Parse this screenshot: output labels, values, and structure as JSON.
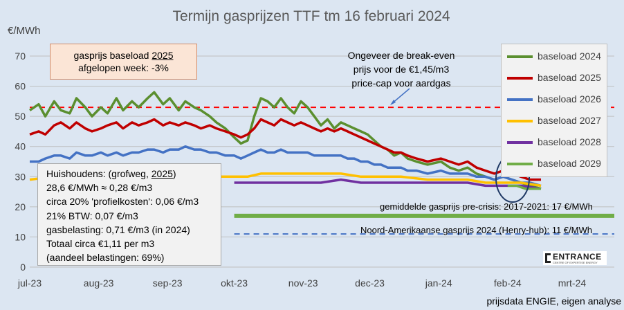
{
  "chart_data": {
    "type": "line",
    "title": "Termijn gasprijzen TTF tm 16 februari 2024",
    "ylabel": "€/MWh",
    "ylim": [
      0,
      70
    ],
    "yticks": [
      "0",
      "10",
      "20",
      "30",
      "40",
      "50",
      "60",
      "70"
    ],
    "xlim": [
      "2023-07-01",
      "2024-03-20"
    ],
    "xticks": [
      {
        "label": "jul-23",
        "date": "2023-07-01"
      },
      {
        "label": "aug-23",
        "date": "2023-08-01"
      },
      {
        "label": "sep-23",
        "date": "2023-09-01"
      },
      {
        "label": "okt-23",
        "date": "2023-10-01"
      },
      {
        "label": "nov-23",
        "date": "2023-11-01"
      },
      {
        "label": "dec-23",
        "date": "2023-12-01"
      },
      {
        "label": "jan-24",
        "date": "2024-01-01"
      },
      {
        "label": "feb-24",
        "date": "2024-02-01"
      },
      {
        "label": "mrt-24",
        "date": "2024-03-01"
      }
    ],
    "grid": "horizontal",
    "legend_position": "top-right",
    "series": [
      {
        "name": "baseload 2024",
        "color": "#5b8f2f",
        "points": [
          [
            "2023-07-01",
            52
          ],
          [
            "2023-07-05",
            54
          ],
          [
            "2023-07-08",
            50
          ],
          [
            "2023-07-12",
            55
          ],
          [
            "2023-07-15",
            52
          ],
          [
            "2023-07-19",
            51
          ],
          [
            "2023-07-22",
            56
          ],
          [
            "2023-07-26",
            53
          ],
          [
            "2023-07-29",
            50
          ],
          [
            "2023-08-02",
            53
          ],
          [
            "2023-08-05",
            51
          ],
          [
            "2023-08-09",
            56
          ],
          [
            "2023-08-12",
            52
          ],
          [
            "2023-08-16",
            55
          ],
          [
            "2023-08-19",
            53
          ],
          [
            "2023-08-23",
            56
          ],
          [
            "2023-08-26",
            58
          ],
          [
            "2023-08-30",
            54
          ],
          [
            "2023-09-02",
            56
          ],
          [
            "2023-09-06",
            52
          ],
          [
            "2023-09-09",
            55
          ],
          [
            "2023-09-13",
            53
          ],
          [
            "2023-09-16",
            52
          ],
          [
            "2023-09-20",
            50
          ],
          [
            "2023-09-23",
            48
          ],
          [
            "2023-09-27",
            46
          ],
          [
            "2023-10-01",
            43
          ],
          [
            "2023-10-04",
            41
          ],
          [
            "2023-10-07",
            42
          ],
          [
            "2023-10-10",
            50
          ],
          [
            "2023-10-13",
            56
          ],
          [
            "2023-10-16",
            55
          ],
          [
            "2023-10-19",
            53
          ],
          [
            "2023-10-22",
            56
          ],
          [
            "2023-10-25",
            53
          ],
          [
            "2023-10-28",
            51
          ],
          [
            "2023-10-31",
            55
          ],
          [
            "2023-11-03",
            53
          ],
          [
            "2023-11-06",
            50
          ],
          [
            "2023-11-09",
            47
          ],
          [
            "2023-11-12",
            49
          ],
          [
            "2023-11-15",
            46
          ],
          [
            "2023-11-18",
            48
          ],
          [
            "2023-11-21",
            47
          ],
          [
            "2023-11-24",
            46
          ],
          [
            "2023-11-27",
            45
          ],
          [
            "2023-11-30",
            44
          ],
          [
            "2023-12-03",
            42
          ],
          [
            "2023-12-06",
            40
          ],
          [
            "2023-12-09",
            39
          ],
          [
            "2023-12-12",
            37
          ],
          [
            "2023-12-15",
            38
          ],
          [
            "2023-12-18",
            36
          ],
          [
            "2023-12-22",
            35
          ],
          [
            "2023-12-27",
            34
          ],
          [
            "2024-01-02",
            35
          ],
          [
            "2024-01-06",
            33
          ],
          [
            "2024-01-10",
            32
          ],
          [
            "2024-01-14",
            33
          ],
          [
            "2024-01-18",
            31
          ],
          [
            "2024-01-22",
            30
          ],
          [
            "2024-01-26",
            29
          ],
          [
            "2024-01-30",
            30
          ],
          [
            "2024-02-03",
            29
          ],
          [
            "2024-02-07",
            28
          ],
          [
            "2024-02-11",
            27
          ],
          [
            "2024-02-16",
            26
          ]
        ]
      },
      {
        "name": "baseload 2025",
        "color": "#c00000",
        "points": [
          [
            "2023-07-01",
            44
          ],
          [
            "2023-07-05",
            45
          ],
          [
            "2023-07-08",
            44
          ],
          [
            "2023-07-12",
            47
          ],
          [
            "2023-07-15",
            48
          ],
          [
            "2023-07-19",
            46
          ],
          [
            "2023-07-22",
            48
          ],
          [
            "2023-07-26",
            46
          ],
          [
            "2023-07-29",
            45
          ],
          [
            "2023-08-02",
            46
          ],
          [
            "2023-08-05",
            47
          ],
          [
            "2023-08-09",
            48
          ],
          [
            "2023-08-12",
            46
          ],
          [
            "2023-08-16",
            48
          ],
          [
            "2023-08-19",
            47
          ],
          [
            "2023-08-23",
            48
          ],
          [
            "2023-08-26",
            49
          ],
          [
            "2023-08-30",
            47
          ],
          [
            "2023-09-02",
            48
          ],
          [
            "2023-09-06",
            47
          ],
          [
            "2023-09-09",
            48
          ],
          [
            "2023-09-13",
            47
          ],
          [
            "2023-09-16",
            46
          ],
          [
            "2023-09-20",
            47
          ],
          [
            "2023-09-23",
            46
          ],
          [
            "2023-09-27",
            45
          ],
          [
            "2023-10-01",
            44
          ],
          [
            "2023-10-04",
            43
          ],
          [
            "2023-10-07",
            44
          ],
          [
            "2023-10-10",
            46
          ],
          [
            "2023-10-13",
            49
          ],
          [
            "2023-10-16",
            48
          ],
          [
            "2023-10-19",
            47
          ],
          [
            "2023-10-22",
            49
          ],
          [
            "2023-10-25",
            48
          ],
          [
            "2023-10-28",
            47
          ],
          [
            "2023-10-31",
            48
          ],
          [
            "2023-11-03",
            47
          ],
          [
            "2023-11-06",
            46
          ],
          [
            "2023-11-09",
            45
          ],
          [
            "2023-11-12",
            46
          ],
          [
            "2023-11-15",
            45
          ],
          [
            "2023-11-18",
            46
          ],
          [
            "2023-11-21",
            45
          ],
          [
            "2023-11-24",
            44
          ],
          [
            "2023-11-27",
            43
          ],
          [
            "2023-11-30",
            42
          ],
          [
            "2023-12-03",
            41
          ],
          [
            "2023-12-06",
            40
          ],
          [
            "2023-12-09",
            39
          ],
          [
            "2023-12-12",
            38
          ],
          [
            "2023-12-15",
            38
          ],
          [
            "2023-12-18",
            37
          ],
          [
            "2023-12-22",
            36
          ],
          [
            "2023-12-27",
            35
          ],
          [
            "2024-01-02",
            36
          ],
          [
            "2024-01-06",
            35
          ],
          [
            "2024-01-10",
            34
          ],
          [
            "2024-01-14",
            35
          ],
          [
            "2024-01-18",
            33
          ],
          [
            "2024-01-22",
            32
          ],
          [
            "2024-01-26",
            31
          ],
          [
            "2024-01-30",
            32
          ],
          [
            "2024-02-03",
            31
          ],
          [
            "2024-02-07",
            30
          ],
          [
            "2024-02-11",
            29
          ],
          [
            "2024-02-16",
            29
          ]
        ]
      },
      {
        "name": "baseload 2026",
        "color": "#4472c4",
        "points": [
          [
            "2023-07-01",
            35
          ],
          [
            "2023-07-05",
            35
          ],
          [
            "2023-07-08",
            36
          ],
          [
            "2023-07-12",
            37
          ],
          [
            "2023-07-15",
            37
          ],
          [
            "2023-07-19",
            36
          ],
          [
            "2023-07-22",
            38
          ],
          [
            "2023-07-26",
            37
          ],
          [
            "2023-07-29",
            37
          ],
          [
            "2023-08-02",
            38
          ],
          [
            "2023-08-05",
            37
          ],
          [
            "2023-08-09",
            38
          ],
          [
            "2023-08-12",
            37
          ],
          [
            "2023-08-16",
            38
          ],
          [
            "2023-08-19",
            38
          ],
          [
            "2023-08-23",
            39
          ],
          [
            "2023-08-26",
            39
          ],
          [
            "2023-08-30",
            38
          ],
          [
            "2023-09-02",
            39
          ],
          [
            "2023-09-06",
            39
          ],
          [
            "2023-09-09",
            40
          ],
          [
            "2023-09-13",
            39
          ],
          [
            "2023-09-16",
            39
          ],
          [
            "2023-09-20",
            38
          ],
          [
            "2023-09-23",
            38
          ],
          [
            "2023-09-27",
            37
          ],
          [
            "2023-10-01",
            37
          ],
          [
            "2023-10-04",
            36
          ],
          [
            "2023-10-07",
            37
          ],
          [
            "2023-10-10",
            38
          ],
          [
            "2023-10-13",
            39
          ],
          [
            "2023-10-16",
            38
          ],
          [
            "2023-10-19",
            38
          ],
          [
            "2023-10-22",
            39
          ],
          [
            "2023-10-25",
            38
          ],
          [
            "2023-10-28",
            38
          ],
          [
            "2023-10-31",
            38
          ],
          [
            "2023-11-03",
            38
          ],
          [
            "2023-11-06",
            37
          ],
          [
            "2023-11-09",
            37
          ],
          [
            "2023-11-12",
            37
          ],
          [
            "2023-11-15",
            37
          ],
          [
            "2023-11-18",
            37
          ],
          [
            "2023-11-21",
            36
          ],
          [
            "2023-11-24",
            36
          ],
          [
            "2023-11-27",
            35
          ],
          [
            "2023-11-30",
            35
          ],
          [
            "2023-12-03",
            34
          ],
          [
            "2023-12-06",
            34
          ],
          [
            "2023-12-09",
            33
          ],
          [
            "2023-12-12",
            33
          ],
          [
            "2023-12-15",
            33
          ],
          [
            "2023-12-18",
            32
          ],
          [
            "2023-12-22",
            32
          ],
          [
            "2023-12-27",
            31
          ],
          [
            "2024-01-02",
            32
          ],
          [
            "2024-01-06",
            31
          ],
          [
            "2024-01-10",
            31
          ],
          [
            "2024-01-14",
            31
          ],
          [
            "2024-01-18",
            30
          ],
          [
            "2024-01-22",
            30
          ],
          [
            "2024-01-26",
            29
          ],
          [
            "2024-01-30",
            30
          ],
          [
            "2024-02-03",
            29
          ],
          [
            "2024-02-07",
            28
          ],
          [
            "2024-02-11",
            28
          ],
          [
            "2024-02-16",
            27
          ]
        ]
      },
      {
        "name": "baseload 2027",
        "color": "#ffc000",
        "points": [
          [
            "2023-07-01",
            29
          ],
          [
            "2023-07-12",
            30
          ],
          [
            "2023-07-22",
            30
          ],
          [
            "2023-08-02",
            30
          ],
          [
            "2023-08-12",
            30
          ],
          [
            "2023-08-23",
            31
          ],
          [
            "2023-09-02",
            31
          ],
          [
            "2023-09-13",
            31
          ],
          [
            "2023-09-23",
            30
          ],
          [
            "2023-10-01",
            30
          ],
          [
            "2023-10-07",
            30
          ],
          [
            "2023-10-13",
            31
          ],
          [
            "2023-10-22",
            31
          ],
          [
            "2023-10-31",
            31
          ],
          [
            "2023-11-09",
            31
          ],
          [
            "2023-11-18",
            31
          ],
          [
            "2023-11-27",
            30
          ],
          [
            "2023-12-06",
            30
          ],
          [
            "2023-12-15",
            30
          ],
          [
            "2023-12-27",
            29
          ],
          [
            "2024-01-06",
            29
          ],
          [
            "2024-01-14",
            29
          ],
          [
            "2024-01-22",
            28
          ],
          [
            "2024-01-30",
            28
          ],
          [
            "2024-02-07",
            28
          ],
          [
            "2024-02-16",
            27
          ]
        ]
      },
      {
        "name": "baseload 2028",
        "color": "#7030a0",
        "points": [
          [
            "2023-10-01",
            28
          ],
          [
            "2023-10-07",
            28
          ],
          [
            "2023-10-13",
            28
          ],
          [
            "2023-10-22",
            28
          ],
          [
            "2023-10-31",
            28
          ],
          [
            "2023-11-09",
            28
          ],
          [
            "2023-11-18",
            29
          ],
          [
            "2023-11-27",
            28
          ],
          [
            "2023-12-06",
            28
          ],
          [
            "2023-12-15",
            28
          ],
          [
            "2023-12-27",
            28
          ],
          [
            "2024-01-06",
            28
          ],
          [
            "2024-01-14",
            28
          ],
          [
            "2024-01-22",
            27
          ],
          [
            "2024-01-30",
            27
          ],
          [
            "2024-02-07",
            27
          ],
          [
            "2024-02-16",
            26
          ]
        ]
      },
      {
        "name": "baseload 2029",
        "color": "#70ad47",
        "points": [
          [
            "2024-02-01",
            27
          ],
          [
            "2024-02-05",
            27
          ],
          [
            "2024-02-09",
            26
          ],
          [
            "2024-02-13",
            26
          ],
          [
            "2024-02-16",
            26
          ]
        ]
      }
    ],
    "reference_lines": [
      {
        "name": "price-cap",
        "y": 53,
        "color": "#ff0000",
        "style": "dashed",
        "x_start": "2023-07-01",
        "x_end": "2024-03-20"
      },
      {
        "name": "pre-crisis",
        "y": 17,
        "color": "#70ad47",
        "style": "solid",
        "x_start": "2023-10-01",
        "x_end": "2024-03-20"
      },
      {
        "name": "henry-hub",
        "y": 11,
        "color": "#4472c4",
        "style": "dashed",
        "x_start": "2023-10-01",
        "x_end": "2024-03-20"
      }
    ],
    "annotations": {
      "price_cap_note": [
        "Ongeveer de break-even",
        "prijs voor de €1,45/m3",
        "price-cap voor aardgas"
      ],
      "pre_crisis_label": "gemiddelde gasprijs pre-crisis: 2017-2021: 17 €/MWh",
      "henry_hub_label": "Noord-Amerikaanse gasprijs 2024 (Henry-hub): 11 €/MWh"
    },
    "source_note": "prijsdata ENGIE, eigen analyse"
  },
  "callout": {
    "line1": "gasprijs baseload",
    "year": "2025",
    "line2": "afgelopen week: -3%"
  },
  "households": {
    "heading_prefix": "Huishoudens: (grofweg, ",
    "heading_year": "2025",
    "heading_suffix": ")",
    "lines": [
      "28,6 €/MWh ≈ 0,28 €/m3",
      "circa 20% 'profielkosten': 0,06 €/m3",
      "21% BTW: 0,07 €/m3",
      "gasbelasting: 0,71 €/m3  (in 2024)",
      "Totaal circa €1,11 per m3",
      "(aandeel belastingen: 69%)"
    ]
  },
  "logo": {
    "name": "ENTRANCE",
    "tagline": "CENTRE OF EXPERTISE ENERGY"
  }
}
